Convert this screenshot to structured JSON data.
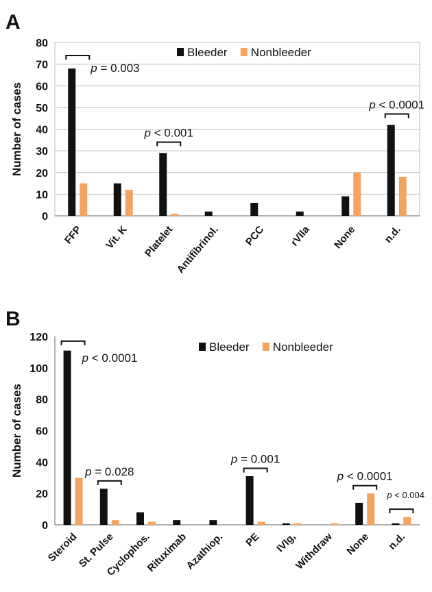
{
  "colors": {
    "bleeder": "#111111",
    "nonbleeder": "#F4A460",
    "axis": "#333333",
    "grid": "#bdbdbd"
  },
  "chart_data": [
    {
      "panel_label": "A",
      "type": "bar",
      "ylabel": "Number of cases",
      "ylim": [
        0,
        80
      ],
      "yticks": [
        0,
        10,
        20,
        30,
        40,
        50,
        60,
        70,
        80
      ],
      "grid": true,
      "legend_position": "top-right",
      "categories": [
        "FFP",
        "Vit. K",
        "Platelet",
        "Antifibrinol.",
        "PCC",
        "rVIIa",
        "None",
        "n.d."
      ],
      "series": [
        {
          "name": "Bleeder",
          "values": [
            68,
            15,
            29,
            2,
            6,
            2,
            9,
            42
          ]
        },
        {
          "name": "Nonbleeder",
          "values": [
            15,
            12,
            1,
            0,
            0,
            0,
            20,
            18
          ]
        }
      ],
      "annotations": [
        {
          "text": "p = 0.003",
          "category_index": 0,
          "bracket_y": 74
        },
        {
          "text": "p < 0.001",
          "category_index": 2,
          "bracket_y": 34
        },
        {
          "text": "p < 0.0001",
          "category_index": 7,
          "bracket_y": 47
        }
      ]
    },
    {
      "panel_label": "B",
      "type": "bar",
      "ylabel": "Number of cases",
      "ylim": [
        0,
        120
      ],
      "yticks": [
        0,
        20,
        40,
        60,
        80,
        100,
        120
      ],
      "grid": false,
      "legend_position": "top-right",
      "categories": [
        "Steroid",
        "St. Pulse",
        "Cyclophos.",
        "Rituximab",
        "Azathiop.",
        "PE",
        "IVIg,",
        "Withdraw",
        "None",
        "n.d."
      ],
      "series": [
        {
          "name": "Bleeder",
          "values": [
            111,
            23,
            8,
            3,
            3,
            31,
            1,
            0,
            14,
            1
          ]
        },
        {
          "name": "Nonbleeder",
          "values": [
            30,
            3,
            2,
            0,
            0,
            2,
            1,
            1,
            20,
            5
          ]
        }
      ],
      "annotations": [
        {
          "text": "p < 0.0001",
          "category_index": 0,
          "bracket_y": 117
        },
        {
          "text": "p = 0.028",
          "category_index": 1,
          "bracket_y": 28
        },
        {
          "text": "p = 0.001",
          "category_index": 5,
          "bracket_y": 36
        },
        {
          "text": "p < 0.0001",
          "category_index": 8,
          "bracket_y": 25
        },
        {
          "text": "p < 0.004",
          "category_index": 9,
          "bracket_y": 10
        }
      ]
    }
  ]
}
